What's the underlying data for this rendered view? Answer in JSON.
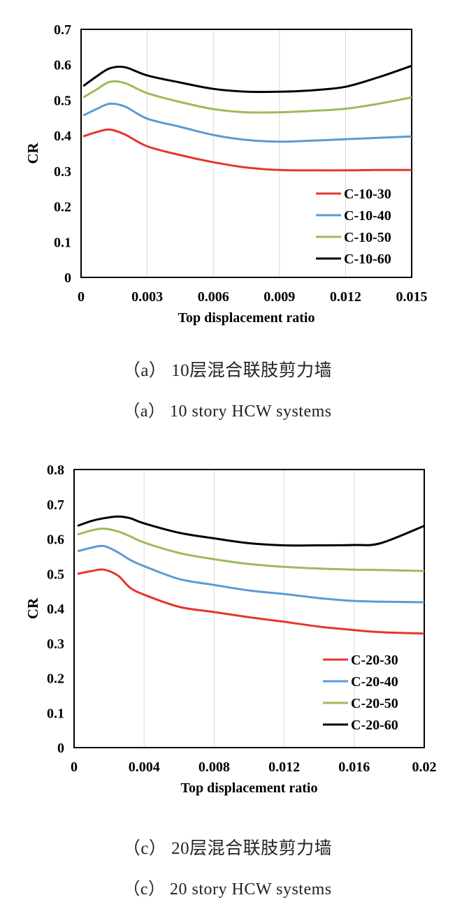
{
  "chart_data": [
    {
      "type": "line",
      "panel": "a",
      "xlabel": "Top displacement ratio",
      "ylabel": "CR",
      "xlim": [
        0,
        0.015
      ],
      "ylim": [
        0,
        0.7
      ],
      "x_ticks": [
        "0",
        "0.003",
        "0.006",
        "0.009",
        "0.012",
        "0.015"
      ],
      "y_ticks": [
        "0",
        "0.1",
        "0.2",
        "0.3",
        "0.4",
        "0.5",
        "0.6",
        "0.7"
      ],
      "grid": "vertical",
      "legend_position": "bottom-right",
      "x": [
        0.0001,
        0.0007,
        0.0013,
        0.002,
        0.003,
        0.0045,
        0.006,
        0.0075,
        0.009,
        0.0105,
        0.012,
        0.0135,
        0.015
      ],
      "series": [
        {
          "name": "C-10-30",
          "color": "#e8342c",
          "values": [
            0.398,
            0.41,
            0.417,
            0.403,
            0.37,
            0.345,
            0.325,
            0.31,
            0.303,
            0.302,
            0.302,
            0.303,
            0.303
          ]
        },
        {
          "name": "C-10-40",
          "color": "#5b9bd5",
          "values": [
            0.457,
            0.475,
            0.49,
            0.482,
            0.448,
            0.425,
            0.402,
            0.388,
            0.383,
            0.386,
            0.39,
            0.394,
            0.398
          ]
        },
        {
          "name": "C-10-50",
          "color": "#9bbb59",
          "values": [
            0.508,
            0.53,
            0.552,
            0.548,
            0.52,
            0.495,
            0.475,
            0.466,
            0.466,
            0.47,
            0.476,
            0.49,
            0.508
          ]
        },
        {
          "name": "C-10-60",
          "color": "#000000",
          "values": [
            0.54,
            0.567,
            0.59,
            0.593,
            0.57,
            0.55,
            0.532,
            0.524,
            0.524,
            0.528,
            0.538,
            0.565,
            0.597
          ]
        }
      ],
      "caption_cn": "（a）  10层混合联肢剪力墙",
      "caption_en": "（a）  10 story HCW systems"
    },
    {
      "type": "line",
      "panel": "c",
      "xlabel": "Top displacement ratio",
      "ylabel": "CR",
      "xlim": [
        0,
        0.02
      ],
      "ylim": [
        0,
        0.8
      ],
      "x_ticks": [
        "0",
        "0.004",
        "0.008",
        "0.012",
        "0.016",
        "0.02"
      ],
      "y_ticks": [
        "0",
        "0.1",
        "0.2",
        "0.3",
        "0.4",
        "0.5",
        "0.6",
        "0.7",
        "0.8"
      ],
      "grid": "vertical",
      "legend_position": "bottom-right",
      "x": [
        0.0002,
        0.001,
        0.0017,
        0.0025,
        0.0032,
        0.004,
        0.006,
        0.008,
        0.01,
        0.012,
        0.014,
        0.016,
        0.0175,
        0.02
      ],
      "series": [
        {
          "name": "C-20-30",
          "color": "#e8342c",
          "values": [
            0.5,
            0.508,
            0.512,
            0.495,
            0.46,
            0.44,
            0.405,
            0.39,
            0.375,
            0.362,
            0.348,
            0.338,
            0.332,
            0.328
          ]
        },
        {
          "name": "C-20-40",
          "color": "#5b9bd5",
          "values": [
            0.565,
            0.575,
            0.58,
            0.562,
            0.54,
            0.522,
            0.485,
            0.468,
            0.452,
            0.442,
            0.43,
            0.422,
            0.42,
            0.418
          ]
        },
        {
          "name": "C-20-50",
          "color": "#9bbb59",
          "values": [
            0.613,
            0.625,
            0.63,
            0.622,
            0.608,
            0.59,
            0.56,
            0.542,
            0.528,
            0.52,
            0.515,
            0.512,
            0.511,
            0.508
          ]
        },
        {
          "name": "C-20-60",
          "color": "#000000",
          "values": [
            0.638,
            0.652,
            0.66,
            0.665,
            0.66,
            0.645,
            0.618,
            0.602,
            0.588,
            0.582,
            0.582,
            0.583,
            0.588,
            0.638
          ]
        }
      ],
      "caption_cn": "（c）  20层混合联肢剪力墙",
      "caption_en": "（c）  20 story HCW systems"
    }
  ]
}
